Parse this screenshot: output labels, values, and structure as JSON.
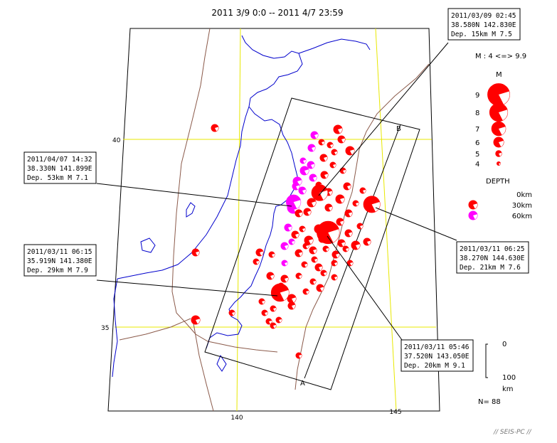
{
  "title": "2011 3/9 0:0 -- 2011 4/7 23:59",
  "grid_labels": {
    "lat_40": "40",
    "lat_35": "35",
    "lon_140": "140",
    "lon_145": "145"
  },
  "section_labels": {
    "a": "A",
    "b": "B"
  },
  "callouts": [
    {
      "line1": "2011/03/09 02:45",
      "line2": "38.580N  142.830E",
      "line3": "Dep. 15km    M 7.5"
    },
    {
      "line1": "2011/04/07 14:32",
      "line2": "38.330N  141.899E",
      "line3": "Dep. 53km    M 7.1"
    },
    {
      "line1": "2011/03/11 06:15",
      "line2": "35.919N  141.380E",
      "line3": "Dep. 29km    M 7.9"
    },
    {
      "line1": "2011/03/11 06:25",
      "line2": "38.270N  144.630E",
      "line3": "Dep. 21km    M 7.6"
    },
    {
      "line1": "2011/03/11 05:46",
      "line2": "37.520N  143.050E",
      "line3": "Dep. 20km    M 9.1"
    }
  ],
  "legend": {
    "m_range": "M : 4 <=> 9.9",
    "m_title": "M",
    "m_items": [
      "9",
      "8",
      "7",
      "6",
      "5",
      "4"
    ],
    "depth_title": "DEPTH",
    "depth_items": [
      "0km",
      "30km",
      "60km"
    ],
    "scale_top": "0",
    "scale_bottom": "100",
    "scale_unit": "km"
  },
  "count": "N= 88",
  "credit": "// SEIS-PC //",
  "colors": {
    "shallow": "#ff0000",
    "deep": "#ff00ff",
    "coast": "#0000cc",
    "grid": "#e8e800",
    "fault": "#8b5a4a",
    "frame": "#000000"
  },
  "events": [
    {
      "lat": 38.58,
      "lon": 142.83,
      "depth": 15,
      "mag": 7.5
    },
    {
      "lat": 38.33,
      "lon": 141.899,
      "depth": 53,
      "mag": 7.1
    },
    {
      "lat": 35.919,
      "lon": 141.38,
      "depth": 29,
      "mag": 7.9
    },
    {
      "lat": 38.27,
      "lon": 144.63,
      "depth": 21,
      "mag": 7.6
    },
    {
      "lat": 37.52,
      "lon": 143.05,
      "depth": 20,
      "mag": 9.1
    }
  ]
}
